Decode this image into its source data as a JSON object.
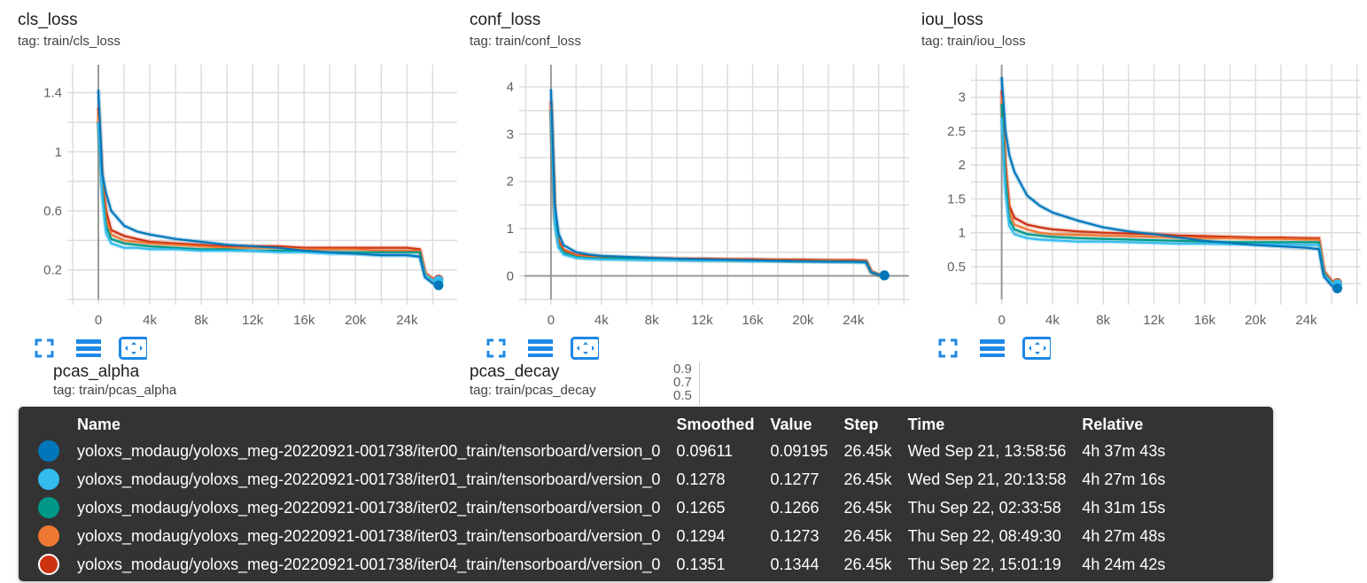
{
  "colors": {
    "iter00": "#0077bb",
    "iter01": "#33bbee",
    "iter02": "#009988",
    "iter03": "#ee7733",
    "iter04": "#cc3311",
    "grid": "#dddddd",
    "icon": "#1e88e5"
  },
  "chart_data": [
    {
      "type": "line",
      "title": "cls_loss",
      "tag": "tag: train/cls_loss",
      "xlim": [
        -2000,
        27900
      ],
      "ylim": [
        0,
        1.59
      ],
      "xticks": [
        0,
        4000,
        8000,
        12000,
        16000,
        20000,
        24000
      ],
      "xtick_labels": [
        "0",
        "4k",
        "8k",
        "12k",
        "16k",
        "20k",
        "24k"
      ],
      "yticks": [
        0.2,
        0.6,
        1,
        1.4
      ],
      "ytick_labels": [
        "0.2",
        "0.6",
        "1",
        "1.4"
      ],
      "xgrid_step": 2000,
      "ygrid_step": 0.2,
      "grid": true,
      "x": [
        0,
        300,
        600,
        1000,
        2000,
        3000,
        4000,
        6000,
        8000,
        10000,
        12000,
        14000,
        16000,
        18000,
        20000,
        22000,
        24000,
        25000,
        25400,
        26000,
        26450
      ],
      "series": [
        {
          "name": "iter00",
          "values": [
            1.42,
            0.85,
            0.72,
            0.6,
            0.5,
            0.46,
            0.44,
            0.41,
            0.39,
            0.37,
            0.36,
            0.35,
            0.33,
            0.32,
            0.31,
            0.3,
            0.3,
            0.29,
            0.15,
            0.11,
            0.096
          ]
        },
        {
          "name": "iter01",
          "values": [
            1.2,
            0.7,
            0.45,
            0.38,
            0.35,
            0.35,
            0.34,
            0.34,
            0.33,
            0.33,
            0.33,
            0.32,
            0.32,
            0.31,
            0.31,
            0.3,
            0.3,
            0.29,
            0.17,
            0.13,
            0.128
          ]
        },
        {
          "name": "iter02",
          "values": [
            1.2,
            0.75,
            0.5,
            0.41,
            0.38,
            0.37,
            0.36,
            0.35,
            0.34,
            0.34,
            0.33,
            0.33,
            0.33,
            0.32,
            0.32,
            0.32,
            0.32,
            0.32,
            0.17,
            0.13,
            0.1265
          ]
        },
        {
          "name": "iter03",
          "values": [
            1.25,
            0.8,
            0.55,
            0.44,
            0.4,
            0.39,
            0.38,
            0.37,
            0.36,
            0.35,
            0.35,
            0.35,
            0.34,
            0.34,
            0.34,
            0.33,
            0.33,
            0.33,
            0.18,
            0.135,
            0.129
          ]
        },
        {
          "name": "iter04",
          "values": [
            1.3,
            0.82,
            0.6,
            0.47,
            0.43,
            0.41,
            0.39,
            0.38,
            0.37,
            0.36,
            0.36,
            0.36,
            0.35,
            0.35,
            0.35,
            0.35,
            0.35,
            0.34,
            0.18,
            0.14,
            0.135
          ]
        }
      ]
    },
    {
      "type": "line",
      "title": "conf_loss",
      "tag": "tag: train/conf_loss",
      "xlim": [
        -2100,
        28400
      ],
      "ylim": [
        -0.5,
        4.47
      ],
      "xticks": [
        0,
        4000,
        8000,
        12000,
        16000,
        20000,
        24000
      ],
      "xtick_labels": [
        "0",
        "4k",
        "8k",
        "12k",
        "16k",
        "20k",
        "24k"
      ],
      "yticks": [
        0,
        1,
        2,
        3,
        4
      ],
      "ytick_labels": [
        "0",
        "1",
        "2",
        "3",
        "4"
      ],
      "xgrid_step": 2000,
      "ygrid_step": 0.5,
      "grid": true,
      "x": [
        0,
        300,
        600,
        1000,
        2000,
        3000,
        4000,
        6000,
        8000,
        10000,
        12000,
        14000,
        16000,
        18000,
        20000,
        22000,
        24000,
        25000,
        25400,
        26000,
        26450
      ],
      "series": [
        {
          "name": "iter00",
          "values": [
            3.95,
            1.5,
            0.9,
            0.65,
            0.5,
            0.45,
            0.42,
            0.4,
            0.38,
            0.36,
            0.35,
            0.34,
            0.33,
            0.32,
            0.31,
            0.3,
            0.3,
            0.29,
            0.08,
            0.02,
            0.0096
          ]
        },
        {
          "name": "iter01",
          "values": [
            3.5,
            1.1,
            0.6,
            0.45,
            0.38,
            0.36,
            0.35,
            0.34,
            0.33,
            0.33,
            0.32,
            0.32,
            0.31,
            0.31,
            0.3,
            0.3,
            0.29,
            0.28,
            0.08,
            0.02,
            0.01
          ]
        },
        {
          "name": "iter02",
          "values": [
            3.5,
            1.2,
            0.65,
            0.5,
            0.4,
            0.38,
            0.37,
            0.36,
            0.35,
            0.34,
            0.33,
            0.33,
            0.32,
            0.32,
            0.31,
            0.31,
            0.3,
            0.3,
            0.08,
            0.02,
            0.01
          ]
        },
        {
          "name": "iter03",
          "values": [
            3.6,
            1.25,
            0.7,
            0.52,
            0.42,
            0.4,
            0.38,
            0.37,
            0.36,
            0.35,
            0.34,
            0.34,
            0.33,
            0.33,
            0.32,
            0.32,
            0.31,
            0.31,
            0.09,
            0.02,
            0.01
          ]
        },
        {
          "name": "iter04",
          "values": [
            3.7,
            1.3,
            0.75,
            0.55,
            0.44,
            0.42,
            0.4,
            0.38,
            0.37,
            0.36,
            0.36,
            0.35,
            0.35,
            0.34,
            0.34,
            0.33,
            0.33,
            0.32,
            0.09,
            0.02,
            0.01
          ]
        }
      ]
    },
    {
      "type": "line",
      "title": "iou_loss",
      "tag": "tag: train/iou_loss",
      "xlim": [
        -2000,
        28300
      ],
      "ylim": [
        0.016,
        3.48
      ],
      "xticks": [
        0,
        4000,
        8000,
        12000,
        16000,
        20000,
        24000
      ],
      "xtick_labels": [
        "0",
        "4k",
        "8k",
        "12k",
        "16k",
        "20k",
        "24k"
      ],
      "yticks": [
        0.5,
        1,
        1.5,
        2,
        2.5,
        3
      ],
      "ytick_labels": [
        "0.5",
        "1",
        "1.5",
        "2",
        "2.5",
        "3"
      ],
      "xgrid_step": 2000,
      "ygrid_step": 0.25,
      "grid": true,
      "x": [
        0,
        300,
        600,
        1000,
        2000,
        3000,
        4000,
        6000,
        8000,
        10000,
        12000,
        14000,
        16000,
        18000,
        20000,
        22000,
        24000,
        25000,
        25400,
        26000,
        26450
      ],
      "series": [
        {
          "name": "iter00",
          "values": [
            3.3,
            2.5,
            2.15,
            1.9,
            1.55,
            1.4,
            1.3,
            1.18,
            1.08,
            1.02,
            0.98,
            0.93,
            0.88,
            0.85,
            0.82,
            0.8,
            0.78,
            0.76,
            0.35,
            0.22,
            0.18
          ]
        },
        {
          "name": "iter01",
          "values": [
            2.7,
            1.6,
            1.1,
            0.98,
            0.92,
            0.9,
            0.89,
            0.87,
            0.87,
            0.86,
            0.85,
            0.84,
            0.84,
            0.83,
            0.83,
            0.83,
            0.82,
            0.82,
            0.38,
            0.26,
            0.24
          ]
        },
        {
          "name": "iter02",
          "values": [
            2.9,
            1.8,
            1.2,
            1.05,
            0.98,
            0.96,
            0.94,
            0.92,
            0.91,
            0.9,
            0.89,
            0.88,
            0.87,
            0.86,
            0.86,
            0.86,
            0.86,
            0.86,
            0.4,
            0.27,
            0.24
          ]
        },
        {
          "name": "iter03",
          "values": [
            3.0,
            1.9,
            1.3,
            1.12,
            1.05,
            1.0,
            0.98,
            0.97,
            0.96,
            0.95,
            0.94,
            0.93,
            0.92,
            0.92,
            0.91,
            0.91,
            0.9,
            0.9,
            0.42,
            0.28,
            0.25
          ]
        },
        {
          "name": "iter04",
          "values": [
            3.1,
            2.0,
            1.4,
            1.22,
            1.12,
            1.08,
            1.05,
            1.02,
            1.0,
            0.99,
            0.98,
            0.96,
            0.95,
            0.94,
            0.93,
            0.93,
            0.92,
            0.92,
            0.43,
            0.29,
            0.26
          ]
        }
      ]
    }
  ],
  "lower_cards": [
    {
      "title": "pcas_alpha",
      "tag": "tag: train/pcas_alpha"
    },
    {
      "title": "pcas_decay",
      "tag": "tag: train/pcas_decay",
      "ytick_labels": [
        "0.9",
        "0.7",
        "0.5"
      ]
    }
  ],
  "tooltip": {
    "headers": {
      "name": "Name",
      "smoothed": "Smoothed",
      "value": "Value",
      "step": "Step",
      "time": "Time",
      "relative": "Relative"
    },
    "rows": [
      {
        "run": "iter00",
        "name": "yoloxs_modaug/yoloxs_meg-20220921-001738/iter00_train/tensorboard/version_0",
        "smoothed": "0.09611",
        "value": "0.09195",
        "step": "26.45k",
        "time": "Wed Sep 21, 13:58:56",
        "relative": "4h 37m 43s"
      },
      {
        "run": "iter01",
        "name": "yoloxs_modaug/yoloxs_meg-20220921-001738/iter01_train/tensorboard/version_0",
        "smoothed": "0.1278",
        "value": "0.1277",
        "step": "26.45k",
        "time": "Wed Sep 21, 20:13:58",
        "relative": "4h 27m 16s"
      },
      {
        "run": "iter02",
        "name": "yoloxs_modaug/yoloxs_meg-20220921-001738/iter02_train/tensorboard/version_0",
        "smoothed": "0.1265",
        "value": "0.1266",
        "step": "26.45k",
        "time": "Thu Sep 22, 02:33:58",
        "relative": "4h 31m 15s"
      },
      {
        "run": "iter03",
        "name": "yoloxs_modaug/yoloxs_meg-20220921-001738/iter03_train/tensorboard/version_0",
        "smoothed": "0.1294",
        "value": "0.1273",
        "step": "26.45k",
        "time": "Thu Sep 22, 08:49:30",
        "relative": "4h 27m 48s"
      },
      {
        "run": "iter04",
        "name": "yoloxs_modaug/yoloxs_meg-20220921-001738/iter04_train/tensorboard/version_0",
        "smoothed": "0.1351",
        "value": "0.1344",
        "step": "26.45k",
        "time": "Thu Sep 22, 15:01:19",
        "relative": "4h 24m 42s"
      }
    ]
  }
}
